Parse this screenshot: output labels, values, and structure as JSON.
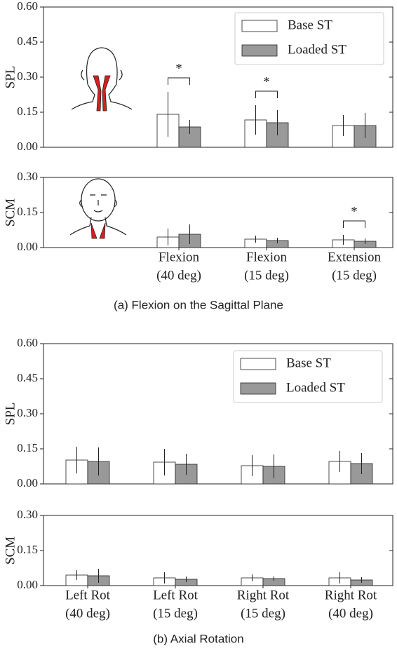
{
  "chart_data": [
    {
      "type": "bar",
      "ylabel": "SPL",
      "ylim": [
        0,
        0.6
      ],
      "yticks": [
        {
          "value": 0,
          "label": "0.00"
        },
        0.15,
        {
          "value": 0.3,
          "label": "0.30"
        },
        0.45,
        {
          "value": 0.6,
          "label": "0.60"
        }
      ],
      "legend": "upper right",
      "series": [
        {
          "name": "Base ST",
          "color": "#ffffff",
          "values": [
            0.141,
            0.117,
            0.093
          ],
          "errors": [
            0.096,
            0.063,
            0.045
          ]
        },
        {
          "name": "Loaded ST",
          "color": "#999999",
          "values": [
            0.087,
            0.105,
            0.093
          ],
          "errors": [
            0.03,
            0.054,
            0.054
          ]
        }
      ],
      "annotations": [
        "*",
        "*"
      ]
    },
    {
      "type": "bar",
      "ylabel": "SCM",
      "ylim": [
        0,
        0.3
      ],
      "yticks": [
        {
          "value": 0,
          "label": "0.00"
        },
        0.15,
        {
          "value": 0.3,
          "label": "0.30"
        }
      ],
      "categories": [
        [
          "Flexion",
          "(40 deg)"
        ],
        [
          "Flexion",
          "(15 deg)"
        ],
        [
          "Extension",
          "(15 deg)"
        ]
      ],
      "series": [
        {
          "color": "#ffffff",
          "values": [
            0.045,
            0.036,
            0.033
          ],
          "errors": [
            0.036,
            0.015,
            0.021
          ]
        },
        {
          "color": "#999999",
          "values": [
            0.057,
            0.03,
            0.027
          ],
          "errors": [
            0.042,
            0.012,
            0.012
          ]
        }
      ],
      "annotations": [
        "*"
      ]
    },
    {
      "type": "bar",
      "ylabel": "SPL",
      "ylim": [
        0,
        0.6
      ],
      "yticks": [
        {
          "value": 0,
          "label": "0.00"
        },
        0.15,
        {
          "value": 0.3,
          "label": "0.30"
        },
        0.45,
        {
          "value": 0.6,
          "label": "0.60"
        }
      ],
      "legend": "upper right",
      "series": [
        {
          "name": "Base ST",
          "color": "#ffffff",
          "values": [
            0.102,
            0.093,
            0.078,
            0.096
          ],
          "errors": [
            0.057,
            0.057,
            0.045,
            0.045
          ]
        },
        {
          "name": "Loaded ST",
          "color": "#999999",
          "values": [
            0.096,
            0.084,
            0.075,
            0.087
          ],
          "errors": [
            0.06,
            0.045,
            0.051,
            0.045
          ]
        }
      ]
    },
    {
      "type": "bar",
      "ylabel": "SCM",
      "ylim": [
        0,
        0.3
      ],
      "yticks": [
        {
          "value": 0,
          "label": "0.00"
        },
        0.15,
        {
          "value": 0.3,
          "label": "0.30"
        }
      ],
      "categories": [
        [
          "Left Rot",
          "(40 deg)"
        ],
        [
          "Left Rot",
          "(15 deg)"
        ],
        [
          "Right Rot",
          "(15 deg)"
        ],
        [
          "Right Rot",
          "(40 deg)"
        ]
      ],
      "series": [
        {
          "color": "#ffffff",
          "values": [
            0.045,
            0.033,
            0.033,
            0.033
          ],
          "errors": [
            0.021,
            0.024,
            0.015,
            0.024
          ]
        },
        {
          "color": "#999999",
          "values": [
            0.042,
            0.027,
            0.03,
            0.024
          ],
          "errors": [
            0.03,
            0.012,
            0.009,
            0.012
          ]
        }
      ]
    }
  ],
  "captions": [
    "(a)  Flexion on the Sagittal Plane",
    "(b)  Axial Rotation"
  ]
}
